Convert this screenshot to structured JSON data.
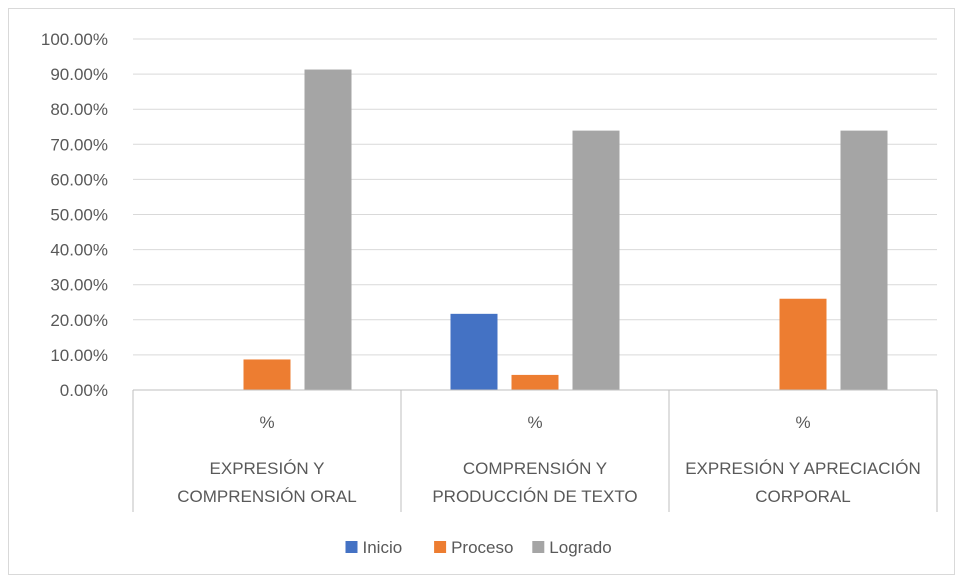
{
  "chart_data": {
    "type": "bar",
    "title": "",
    "xlabel": "",
    "ylabel": "",
    "ylim": [
      0,
      1
    ],
    "yticks": [
      "0.00%",
      "10.00%",
      "20.00%",
      "30.00%",
      "40.00%",
      "50.00%",
      "60.00%",
      "70.00%",
      "80.00%",
      "90.00%",
      "100.00%"
    ],
    "grid": true,
    "legend_position": "bottom",
    "categories": [
      {
        "sub": "%",
        "lines": [
          "EXPRESIÓN Y",
          "COMPRENSIÓN ORAL"
        ]
      },
      {
        "sub": "%",
        "lines": [
          "COMPRENSIÓN Y",
          "PRODUCCIÓN DE TEXTO"
        ]
      },
      {
        "sub": "%",
        "lines": [
          "EXPRESIÓN Y APRECIACIÓN",
          "CORPORAL"
        ]
      }
    ],
    "series": [
      {
        "name": "Inicio",
        "color": "#4472C4",
        "values": [
          0,
          0.217,
          0
        ]
      },
      {
        "name": "Proceso",
        "color": "#ED7D31",
        "values": [
          0.087,
          0.043,
          0.26
        ]
      },
      {
        "name": "Logrado",
        "color": "#A5A5A5",
        "values": [
          0.913,
          0.739,
          0.739
        ]
      }
    ]
  }
}
